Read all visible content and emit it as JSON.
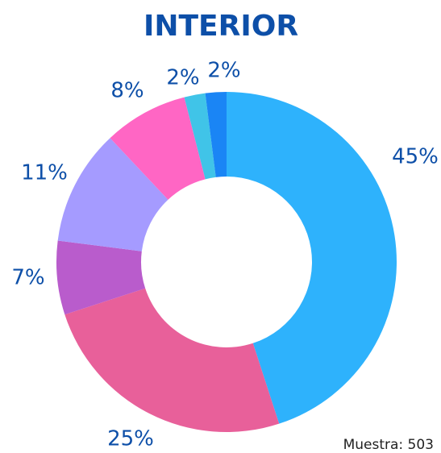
{
  "chart_data": {
    "type": "donut",
    "title": "INTERIOR",
    "values": [
      45,
      25,
      7,
      11,
      8,
      2,
      2
    ],
    "value_labels": [
      "45%",
      "25%",
      "7%",
      "11%",
      "8%",
      "2%",
      "2%"
    ],
    "colors": [
      "#2eb2fc",
      "#e8609a",
      "#b95ccc",
      "#a59bff",
      "#ff66c4",
      "#40c4e8",
      "#1a85f5"
    ],
    "footnote": "Muestra: 503"
  }
}
